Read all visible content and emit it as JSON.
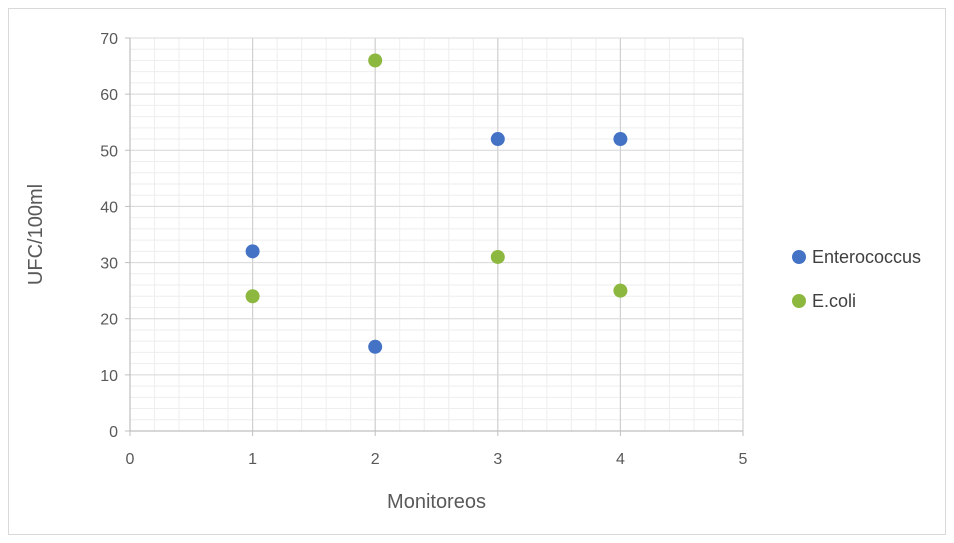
{
  "chart_data": {
    "type": "scatter",
    "title": "",
    "xlabel": "Monitoreos",
    "ylabel": "UFC/100ml",
    "xlim": [
      0,
      5
    ],
    "ylim": [
      0,
      70
    ],
    "x_ticks": [
      0,
      1,
      2,
      3,
      4,
      5
    ],
    "y_ticks": [
      0,
      10,
      20,
      30,
      40,
      50,
      60,
      70
    ],
    "x_tick_labels": [
      "0",
      "1",
      "2",
      "3",
      "4",
      "5"
    ],
    "y_tick_labels": [
      "0",
      "10",
      "20",
      "30",
      "40",
      "50",
      "60",
      "70"
    ],
    "grid": true,
    "legend_position": "right",
    "series": [
      {
        "name": "Enterococcus",
        "color": "#4472c4",
        "x": [
          1,
          2,
          3,
          4
        ],
        "y": [
          32,
          15,
          52,
          52
        ]
      },
      {
        "name": "E.coli",
        "color": "#8db83f",
        "x": [
          1,
          2,
          3,
          4
        ],
        "y": [
          24,
          66,
          31,
          25
        ]
      }
    ]
  }
}
